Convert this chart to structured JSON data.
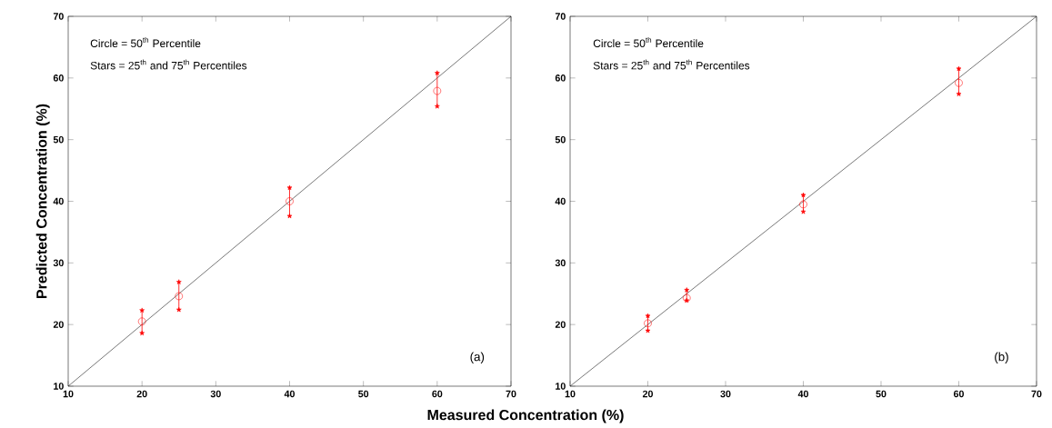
{
  "chart_data": [
    {
      "type": "scatter",
      "xlabel": "Measured Concentration (%)",
      "ylabel": "Predicted Concentration (%)",
      "annotations": [
        "Circle = 50$^{th}$ Percentile",
        "Stars = 25$^{th}$ and 75$^{th}$ Percentiles",
        "(a)"
      ],
      "xlim": [
        10,
        70
      ],
      "ylim": [
        10,
        70
      ],
      "xticks": [
        10,
        20,
        30,
        40,
        50,
        60,
        70
      ],
      "yticks": [
        10,
        20,
        30,
        40,
        50,
        60,
        70
      ],
      "grid": false,
      "series": [
        {
          "type": "line",
          "color": "#000000",
          "x": [
            10,
            70
          ],
          "values": [
            10,
            70
          ],
          "marker": "none",
          "line_style": "solid"
        },
        {
          "color": "#ff0000",
          "x": [
            20,
            25,
            40,
            60
          ],
          "values": [
            20.5,
            24.6,
            40.0,
            57.9
          ],
          "marker": "circle",
          "errors": [
            [
              18.6,
              22.3
            ],
            [
              22.4,
              26.9
            ],
            [
              37.6,
              42.2
            ],
            [
              55.4,
              60.8
            ]
          ]
        },
        {
          "color": "#ff0000",
          "x": [
            20,
            25,
            40,
            60
          ],
          "values": [
            18.6,
            22.4,
            37.6,
            55.4
          ],
          "marker": "star"
        },
        {
          "color": "#ff0000",
          "x": [
            20,
            25,
            40,
            60
          ],
          "values": [
            22.3,
            26.9,
            42.2,
            60.8
          ],
          "marker": "star"
        }
      ]
    },
    {
      "type": "scatter",
      "annotations": [
        "Circle = 50$^{th}$ Percentile",
        "Stars = 25$^{th}$ and 75$^{th}$ Percentiles",
        "(b)"
      ],
      "xlim": [
        10,
        70
      ],
      "ylim": [
        10,
        70
      ],
      "xticks": [
        10,
        20,
        30,
        40,
        50,
        60,
        70
      ],
      "yticks": [
        10,
        20,
        30,
        40,
        50,
        60,
        70
      ],
      "grid": false,
      "series": [
        {
          "type": "line",
          "color": "#000000",
          "x": [
            10,
            70
          ],
          "values": [
            10,
            70
          ],
          "marker": "none",
          "line_style": "solid"
        },
        {
          "color": "#ff0000",
          "x": [
            20,
            25,
            40,
            60
          ],
          "values": [
            20.2,
            24.3,
            39.5,
            59.2
          ],
          "marker": "circle",
          "errors": [
            [
              19.0,
              21.4
            ],
            [
              23.9,
              25.6
            ],
            [
              38.3,
              41.0
            ],
            [
              57.4,
              61.5
            ]
          ]
        },
        {
          "color": "#ff0000",
          "x": [
            20,
            25,
            40,
            60
          ],
          "values": [
            19.0,
            23.9,
            38.3,
            57.4
          ],
          "marker": "star"
        },
        {
          "color": "#ff0000",
          "x": [
            20,
            25,
            40,
            60
          ],
          "values": [
            21.4,
            25.6,
            41.0,
            61.5
          ],
          "marker": "star"
        }
      ]
    }
  ]
}
